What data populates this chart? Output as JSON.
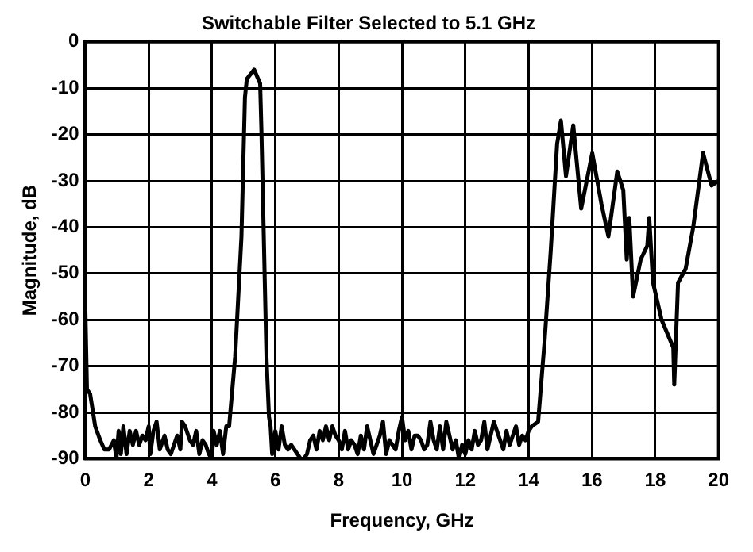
{
  "chart_data": {
    "type": "line",
    "title": "Switchable Filter Selected to 5.1 GHz",
    "xlabel": "Frequency, GHz",
    "ylabel": "Magnitude, dB",
    "xlim": [
      0,
      20
    ],
    "xticks": [
      0,
      2,
      4,
      6,
      8,
      10,
      12,
      14,
      16,
      18,
      20
    ],
    "ylim": [
      -90,
      0
    ],
    "yticks": [
      -90,
      -80,
      -70,
      -60,
      -50,
      -40,
      -30,
      -20,
      -10,
      0
    ],
    "grid": true,
    "legend": false,
    "marker": "none",
    "line_style": "solid",
    "series": [
      {
        "color": "#000000",
        "x": [
          0,
          0.05,
          0.15,
          0.31,
          0.47,
          0.6,
          0.75,
          0.9,
          0.98,
          1.05,
          1.12,
          1.2,
          1.3,
          1.4,
          1.5,
          1.6,
          1.7,
          1.8,
          1.9,
          2.0,
          2.05,
          2.15,
          2.25,
          2.35,
          2.5,
          2.6,
          2.7,
          2.8,
          2.9,
          3.0,
          3.05,
          3.15,
          3.3,
          3.4,
          3.5,
          3.6,
          3.7,
          3.8,
          3.9,
          4.0,
          4.05,
          4.15,
          4.25,
          4.35,
          4.45,
          4.54,
          4.73,
          4.93,
          5.04,
          5.1,
          5.33,
          5.52,
          5.56,
          5.72,
          5.8,
          5.85,
          5.9,
          6.0,
          6.1,
          6.2,
          6.3,
          6.4,
          6.5,
          6.6,
          6.7,
          6.8,
          6.9,
          7.0,
          7.1,
          7.2,
          7.3,
          7.4,
          7.5,
          7.6,
          7.7,
          7.8,
          7.9,
          8.0,
          8.1,
          8.2,
          8.3,
          8.4,
          8.5,
          8.6,
          8.7,
          8.8,
          8.9,
          9.0,
          9.1,
          9.2,
          9.3,
          9.4,
          9.5,
          9.6,
          9.7,
          9.8,
          9.9,
          10.0,
          10.1,
          10.2,
          10.3,
          10.4,
          10.5,
          10.6,
          10.7,
          10.8,
          10.9,
          11.0,
          11.1,
          11.2,
          11.3,
          11.4,
          11.5,
          11.6,
          11.7,
          11.8,
          11.9,
          12.0,
          12.1,
          12.2,
          12.3,
          12.4,
          12.5,
          12.6,
          12.7,
          12.8,
          12.9,
          13.0,
          13.1,
          13.2,
          13.3,
          13.4,
          13.5,
          13.6,
          13.7,
          13.8,
          13.9,
          14.0,
          14.1,
          14.3,
          14.5,
          14.7,
          14.9,
          15.02,
          15.18,
          15.41,
          15.66,
          16.01,
          16.3,
          16.52,
          16.8,
          16.99,
          17.1,
          17.18,
          17.3,
          17.54,
          17.75,
          17.81,
          17.93,
          18.2,
          18.57,
          18.6,
          18.72,
          18.96,
          19.2,
          19.51,
          19.78,
          20
        ],
        "values": [
          -58,
          -75,
          -76,
          -83,
          -86,
          -88,
          -88,
          -86,
          -90,
          -84,
          -89,
          -83,
          -89,
          -84,
          -87,
          -84,
          -87,
          -85,
          -86,
          -83,
          -89,
          -84,
          -82,
          -88,
          -85,
          -88,
          -89,
          -87,
          -85,
          -88,
          -82,
          -83,
          -86,
          -87,
          -84,
          -89,
          -86,
          -87,
          -89,
          -90,
          -84,
          -87,
          -84,
          -89,
          -83,
          -83,
          -68,
          -42,
          -12,
          -8,
          -6,
          -9,
          -19,
          -68,
          -81,
          -83,
          -89,
          -84,
          -88,
          -83,
          -87,
          -88,
          -87,
          -88,
          -89,
          -90,
          -90,
          -89,
          -86,
          -85,
          -88,
          -84,
          -86,
          -83,
          -86,
          -83,
          -85,
          -86,
          -88,
          -84,
          -88,
          -86,
          -87,
          -89,
          -85,
          -88,
          -83,
          -86,
          -89,
          -87,
          -85,
          -82,
          -89,
          -86,
          -87,
          -88,
          -84,
          -81,
          -86,
          -84,
          -88,
          -85,
          -85,
          -86,
          -88,
          -87,
          -82,
          -86,
          -88,
          -83,
          -88,
          -82,
          -85,
          -88,
          -86,
          -90,
          -87,
          -89,
          -86,
          -88,
          -84,
          -87,
          -86,
          -82,
          -88,
          -85,
          -82,
          -84,
          -86,
          -88,
          -84,
          -87,
          -85,
          -83,
          -87,
          -85,
          -86,
          -84,
          -83,
          -82,
          -65,
          -45,
          -22,
          -17,
          -29,
          -18,
          -36,
          -24,
          -35,
          -42,
          -28,
          -32,
          -47,
          -38,
          -55,
          -47,
          -44,
          -38,
          -52,
          -60,
          -66,
          -74,
          -52,
          -49,
          -40,
          -24,
          -31,
          -30
        ]
      }
    ]
  }
}
